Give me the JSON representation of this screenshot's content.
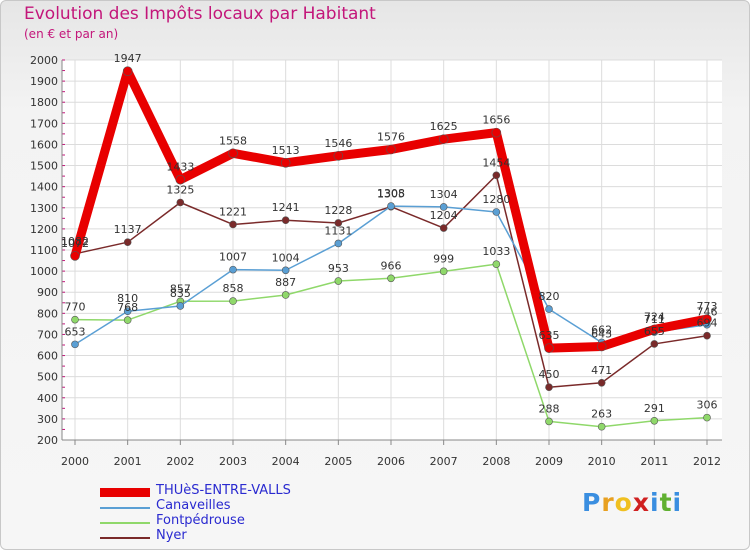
{
  "chart_data": {
    "type": "line",
    "title": "Evolution des Impôts locaux par Habitant",
    "subtitle": "(en € et par an)",
    "xlabel": "",
    "ylabel": "",
    "ylim": [
      200,
      2000
    ],
    "y_ticks": [
      200,
      300,
      400,
      500,
      600,
      700,
      800,
      900,
      1000,
      1100,
      1200,
      1300,
      1400,
      1500,
      1600,
      1700,
      1800,
      1900,
      2000
    ],
    "categories": [
      "2000",
      "2001",
      "2002",
      "2003",
      "2004",
      "2005",
      "2006",
      "2007",
      "2008",
      "2009",
      "2010",
      "2011",
      "2012"
    ],
    "grid": true,
    "legend_position": "bottom-left",
    "series": [
      {
        "name": "THUèS-ENTRE-VALLS",
        "color": "#e80000",
        "values": [
          1072,
          1947,
          1433,
          1558,
          1513,
          1546,
          1576,
          1625,
          1656,
          635,
          643,
          724,
          773
        ]
      },
      {
        "name": "Canaveilles",
        "color": "#5a9fd4",
        "values": [
          653,
          810,
          835,
          1007,
          1004,
          1131,
          1308,
          1304,
          1280,
          820,
          662,
          711,
          746
        ]
      },
      {
        "name": "Fontpédrouse",
        "color": "#8fd86a",
        "values": [
          770,
          768,
          857,
          858,
          887,
          953,
          966,
          999,
          1033,
          288,
          263,
          291,
          306
        ]
      },
      {
        "name": "Nyer",
        "color": "#7a2a2a",
        "values": [
          1082,
          1137,
          1325,
          1221,
          1241,
          1228,
          1305,
          1204,
          1454,
          450,
          471,
          655,
          694
        ]
      }
    ]
  },
  "branding": {
    "logo_letters": [
      "P",
      "r",
      "o",
      "x",
      "i",
      "t",
      "i"
    ],
    "logo_colors": [
      "#3a8ee0",
      "#e8a020",
      "#f0c020",
      "#d02020",
      "#3a8ee0",
      "#60b030",
      "#3a8ee0"
    ]
  }
}
